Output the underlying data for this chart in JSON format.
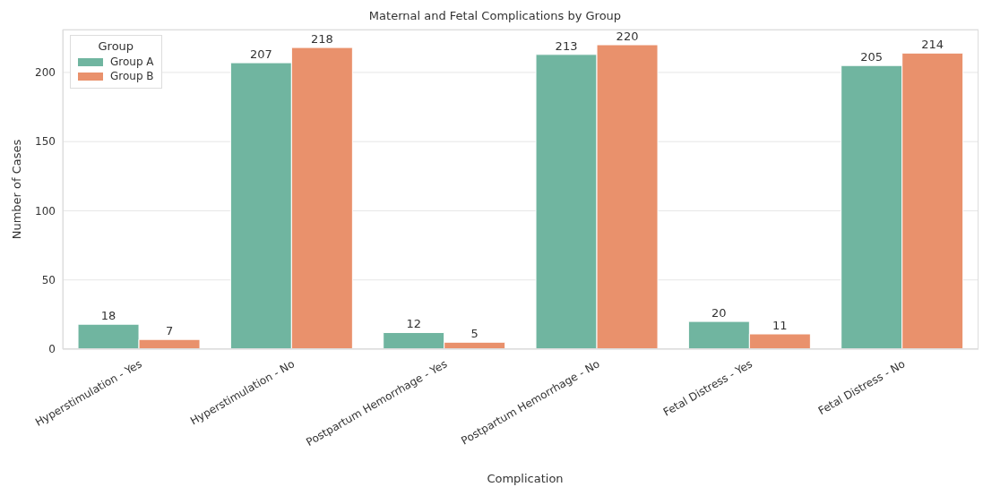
{
  "chart_data": {
    "type": "bar",
    "title": "Maternal and Fetal Complications by Group",
    "xlabel": "Complication",
    "ylabel": "Number of Cases",
    "legend_title": "Group",
    "categories": [
      "Hyperstimulation - Yes",
      "Hyperstimulation - No",
      "Postpartum Hemorrhage - Yes",
      "Postpartum Hemorrhage - No",
      "Fetal Distress - Yes",
      "Fetal Distress - No"
    ],
    "series": [
      {
        "name": "Group A",
        "color": "#70b5a0",
        "values": [
          18,
          207,
          12,
          213,
          20,
          205
        ]
      },
      {
        "name": "Group B",
        "color": "#e9916c",
        "values": [
          7,
          218,
          5,
          220,
          11,
          214
        ]
      }
    ],
    "ylim": [
      0,
      231
    ],
    "yticks": [
      0,
      50,
      100,
      150,
      200
    ],
    "grid": "y",
    "legend": "top left",
    "data_labels": true
  }
}
